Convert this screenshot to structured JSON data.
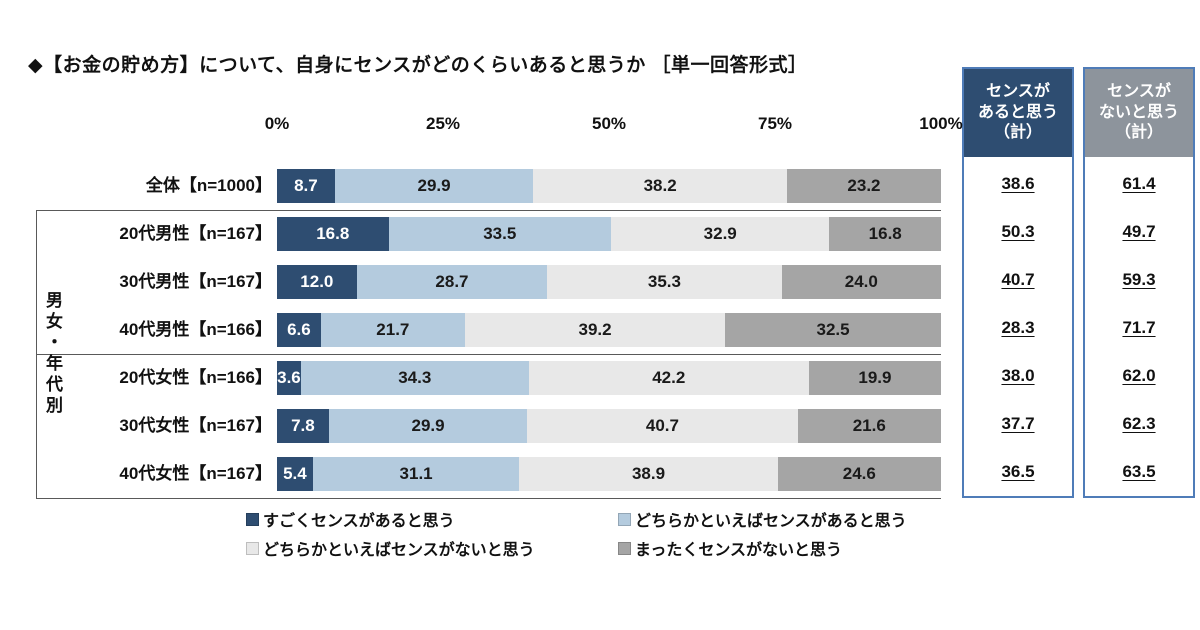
{
  "title": "◆【お金の貯め方】について、自身にセンスがどのくらいあると思うか ［単一回答形式］",
  "summary_columns": [
    {
      "label": "センスが\nあると思う\n（計）",
      "color": "#2e4d71"
    },
    {
      "label": "センスが\nないと思う\n（計）",
      "color": "#8d949c"
    }
  ],
  "colors": {
    "column_border": "#4f7cb8",
    "separator_line": "#595959"
  },
  "chart_data": {
    "type": "bar",
    "stacked": true,
    "orientation": "horizontal",
    "title": "◆【お金の貯め方】について、自身にセンスがどのくらいあると思うか ［単一回答形式］",
    "x_ticks": [
      "0%",
      "25%",
      "50%",
      "75%",
      "100%"
    ],
    "xlim": [
      0,
      100
    ],
    "group_label": "男女・年代別",
    "series_labels": [
      "すごくセンスがあると思う",
      "どちらかといえばセンスがあると思う",
      "どちらかといえばセンスがないと思う",
      "まったくセンスがないと思う"
    ],
    "series_colors": [
      "#2e4d71",
      "#b4cbde",
      "#e8e8e8",
      "#a5a5a5"
    ],
    "summary_headers": [
      "センスがあると思う（計）",
      "センスがないと思う（計）"
    ],
    "rows": [
      {
        "label": "全体【n=1000】",
        "values": [
          8.7,
          29.9,
          38.2,
          23.2
        ],
        "sense_aru": "38.6",
        "sense_nai": "61.4",
        "in_group": false
      },
      {
        "label": "20代男性【n=167】",
        "values": [
          16.8,
          33.5,
          32.9,
          16.8
        ],
        "sense_aru": "50.3",
        "sense_nai": "49.7",
        "in_group": true
      },
      {
        "label": "30代男性【n=167】",
        "values": [
          12.0,
          28.7,
          35.3,
          24.0
        ],
        "sense_aru": "40.7",
        "sense_nai": "59.3",
        "in_group": true
      },
      {
        "label": "40代男性【n=166】",
        "values": [
          6.6,
          21.7,
          39.2,
          32.5
        ],
        "sense_aru": "28.3",
        "sense_nai": "71.7",
        "in_group": true
      },
      {
        "label": "20代女性【n=166】",
        "values": [
          3.6,
          34.3,
          42.2,
          19.9
        ],
        "sense_aru": "38.0",
        "sense_nai": "62.0",
        "in_group": true
      },
      {
        "label": "30代女性【n=167】",
        "values": [
          7.8,
          29.9,
          40.7,
          21.6
        ],
        "sense_aru": "37.7",
        "sense_nai": "62.3",
        "in_group": true
      },
      {
        "label": "40代女性【n=167】",
        "values": [
          5.4,
          31.1,
          38.9,
          24.6
        ],
        "sense_aru": "36.5",
        "sense_nai": "63.5",
        "in_group": true
      }
    ]
  },
  "legend": [
    {
      "label": "すごくセンスがあると思う",
      "color": "#2e4d71"
    },
    {
      "label": "どちらかといえばセンスがあると思う",
      "color": "#b4cbde"
    },
    {
      "label": "どちらかといえばセンスがないと思う",
      "color": "#e8e8e8"
    },
    {
      "label": "まったくセンスがないと思う",
      "color": "#a5a5a5"
    }
  ]
}
